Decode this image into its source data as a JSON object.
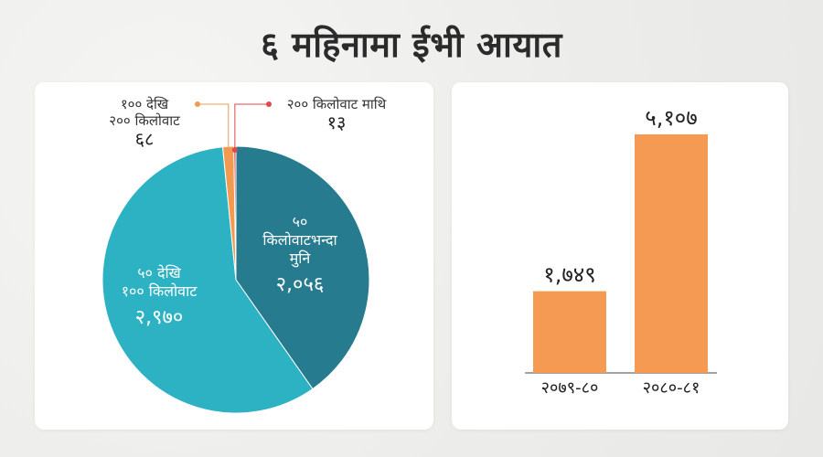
{
  "title": "६ महिनामा ईभी आयात",
  "chart_data": [
    {
      "type": "pie",
      "slices": [
        {
          "label_lines": [
            "५०",
            "किलोवाटभन्दा",
            "मुनि"
          ],
          "value_text": "२,०५६",
          "value": 2056,
          "color": "#267b8f"
        },
        {
          "label_lines": [
            "५० देखि",
            "१०० किलोवाट"
          ],
          "value_text": "२,९७०",
          "value": 2970,
          "color": "#2db2c4"
        },
        {
          "label_lines": [
            "१०० देखि",
            "२०० किलोवाट"
          ],
          "value_text": "६८",
          "value": 68,
          "color": "#f29a50"
        },
        {
          "label_lines": [
            "२०० किलोवाट माथि"
          ],
          "value_text": "१३",
          "value": 13,
          "color": "#e1464b"
        }
      ]
    },
    {
      "type": "bar",
      "categories": [
        "२०७९-८०",
        "२०८०-८१"
      ],
      "values": [
        1749,
        5107
      ],
      "value_labels": [
        "१,७४९",
        "५,१०७"
      ],
      "color": "#f59a52"
    }
  ]
}
